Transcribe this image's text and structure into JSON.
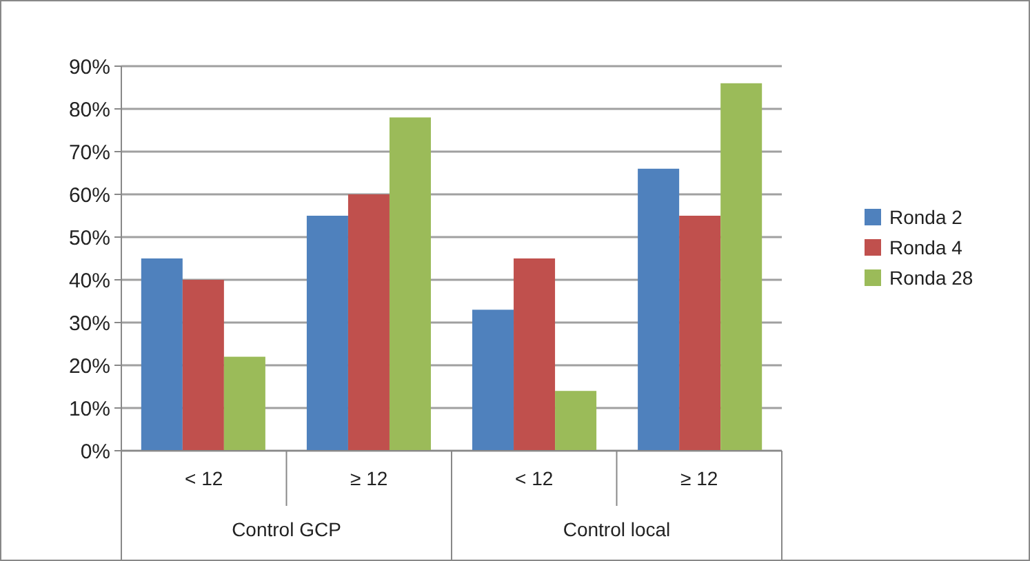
{
  "chart_data": {
    "type": "bar",
    "categories": [
      "< 12",
      "≥ 12",
      "< 12",
      "≥ 12"
    ],
    "series": [
      {
        "name": "Ronda 2",
        "color": "#4f81bd",
        "values": [
          0.45,
          0.55,
          0.33,
          0.66
        ]
      },
      {
        "name": "Ronda 4",
        "color": "#c0504d",
        "values": [
          0.4,
          0.6,
          0.45,
          0.55
        ]
      },
      {
        "name": "Ronda 28",
        "color": "#9bbb59",
        "values": [
          0.22,
          0.78,
          0.14,
          0.86
        ]
      }
    ],
    "ylim": [
      0,
      0.9
    ],
    "yticks": [
      {
        "value": 0,
        "label": "0%"
      },
      {
        "value": 0.1,
        "label": "10%"
      },
      {
        "value": 0.2,
        "label": "20%"
      },
      {
        "value": 0.3,
        "label": "30%"
      },
      {
        "value": 0.4,
        "label": "40%"
      },
      {
        "value": 0.5,
        "label": "50%"
      },
      {
        "value": 0.6,
        "label": "60%"
      },
      {
        "value": 0.7,
        "label": "70%"
      },
      {
        "value": 0.8,
        "label": "80%"
      },
      {
        "value": 0.9,
        "label": "90%"
      }
    ],
    "annotations": [
      "Control GCP",
      "Control local"
    ],
    "grid": "y",
    "legend": "right"
  }
}
